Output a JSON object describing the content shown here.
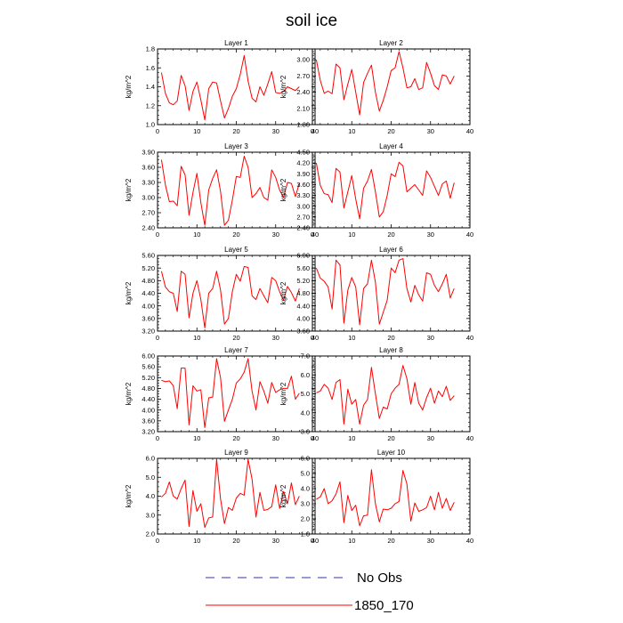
{
  "title": "soil ice",
  "colors": {
    "series": "#ff0000",
    "obs": "#3333aa",
    "axis": "#000000"
  },
  "legend": {
    "placement": "bottom-center",
    "items": [
      {
        "label": "No Obs",
        "style": "dashed",
        "color": "#3333aa"
      },
      {
        "label": "1850_170",
        "style": "solid",
        "color": "#ff0000"
      }
    ]
  },
  "chart_data": [
    {
      "type": "line",
      "title": "Layer 1",
      "ylabel": "kg/m^2",
      "xlim": [
        0,
        40
      ],
      "xticks": [
        "0",
        "10",
        "20",
        "30",
        "40"
      ],
      "ylim": [
        1.0,
        1.8
      ],
      "yticks": [
        "1.0",
        "1.2",
        "1.4",
        "1.6",
        "1.8"
      ],
      "x": [
        1,
        2,
        3,
        4,
        5,
        6,
        7,
        8,
        9,
        10,
        11,
        12,
        13,
        14,
        15,
        16,
        17,
        18,
        19,
        20,
        21,
        22,
        23,
        24,
        25,
        26,
        27,
        28,
        29,
        30,
        31,
        32,
        33,
        34,
        35,
        36
      ],
      "series": [
        {
          "values": [
            1.55,
            1.33,
            1.23,
            1.21,
            1.25,
            1.52,
            1.41,
            1.15,
            1.35,
            1.45,
            1.26,
            1.05,
            1.38,
            1.45,
            1.44,
            1.25,
            1.07,
            1.17,
            1.3,
            1.38,
            1.53,
            1.73,
            1.46,
            1.28,
            1.24,
            1.4,
            1.31,
            1.43,
            1.56,
            1.34,
            1.33,
            1.35,
            1.4,
            1.38,
            1.36,
            1.4
          ]
        }
      ]
    },
    {
      "type": "line",
      "title": "Layer 2",
      "ylabel": "kg/m^2",
      "xlim": [
        0,
        40
      ],
      "xticks": [
        "0",
        "10",
        "20",
        "30",
        "40"
      ],
      "ylim": [
        1.8,
        3.2
      ],
      "yticks": [
        "1.80",
        "2.10",
        "2.40",
        "2.70",
        "3.00"
      ],
      "x": [
        1,
        2,
        3,
        4,
        5,
        6,
        7,
        8,
        9,
        10,
        11,
        12,
        13,
        14,
        15,
        16,
        17,
        18,
        19,
        20,
        21,
        22,
        23,
        24,
        25,
        26,
        27,
        28,
        29,
        30,
        31,
        32,
        33,
        34,
        35,
        36
      ],
      "series": [
        {
          "values": [
            3.0,
            2.62,
            2.38,
            2.42,
            2.37,
            2.92,
            2.85,
            2.26,
            2.55,
            2.82,
            2.4,
            1.98,
            2.58,
            2.75,
            2.9,
            2.4,
            2.05,
            2.25,
            2.5,
            2.8,
            2.85,
            3.15,
            2.85,
            2.48,
            2.5,
            2.65,
            2.45,
            2.48,
            2.95,
            2.75,
            2.52,
            2.45,
            2.72,
            2.7,
            2.55,
            2.7
          ]
        }
      ]
    },
    {
      "type": "line",
      "title": "Layer 3",
      "ylabel": "kg/m^2",
      "xlim": [
        0,
        40
      ],
      "xticks": [
        "0",
        "10",
        "20",
        "30",
        "40"
      ],
      "ylim": [
        2.4,
        3.9
      ],
      "yticks": [
        "2.40",
        "2.70",
        "3.00",
        "3.30",
        "3.60",
        "3.90"
      ],
      "x": [
        1,
        2,
        3,
        4,
        5,
        6,
        7,
        8,
        9,
        10,
        11,
        12,
        13,
        14,
        15,
        16,
        17,
        18,
        19,
        20,
        21,
        22,
        23,
        24,
        25,
        26,
        27,
        28,
        29,
        30,
        31,
        32,
        33,
        34,
        35,
        36
      ],
      "series": [
        {
          "values": [
            3.75,
            3.25,
            2.92,
            2.93,
            2.84,
            3.62,
            3.45,
            2.65,
            3.1,
            3.48,
            2.9,
            2.45,
            3.15,
            3.38,
            3.55,
            3.12,
            2.45,
            2.55,
            2.95,
            3.42,
            3.4,
            3.82,
            3.6,
            3.0,
            3.08,
            3.2,
            3.0,
            2.95,
            3.55,
            3.4,
            3.15,
            3.0,
            3.3,
            3.28,
            3.02,
            3.28
          ]
        }
      ]
    },
    {
      "type": "line",
      "title": "Layer 4",
      "ylabel": "kg/m^2",
      "xlim": [
        0,
        40
      ],
      "xticks": [
        "0",
        "10",
        "20",
        "30",
        "40"
      ],
      "ylim": [
        2.4,
        4.5
      ],
      "yticks": [
        "2.40",
        "2.70",
        "3.00",
        "3.30",
        "3.60",
        "3.90",
        "4.20",
        "4.50"
      ],
      "x": [
        1,
        2,
        3,
        4,
        5,
        6,
        7,
        8,
        9,
        10,
        11,
        12,
        13,
        14,
        15,
        16,
        17,
        18,
        19,
        20,
        21,
        22,
        23,
        24,
        25,
        26,
        27,
        28,
        29,
        30,
        31,
        32,
        33,
        34,
        35,
        36
      ],
      "series": [
        {
          "values": [
            4.2,
            3.58,
            3.35,
            3.32,
            3.1,
            4.05,
            3.95,
            2.95,
            3.4,
            3.85,
            3.2,
            2.65,
            3.5,
            3.7,
            4.02,
            3.4,
            2.7,
            2.85,
            3.3,
            3.9,
            3.82,
            4.22,
            4.12,
            3.4,
            3.5,
            3.6,
            3.45,
            3.3,
            3.98,
            3.8,
            3.55,
            3.3,
            3.62,
            3.7,
            3.22,
            3.65
          ]
        }
      ]
    },
    {
      "type": "line",
      "title": "Layer 5",
      "ylabel": "kg/m^2",
      "xlim": [
        0,
        40
      ],
      "xticks": [
        "0",
        "10",
        "20",
        "30",
        "40"
      ],
      "ylim": [
        3.2,
        5.6
      ],
      "yticks": [
        "3.20",
        "3.60",
        "4.00",
        "4.40",
        "4.80",
        "5.20",
        "5.60"
      ],
      "x": [
        1,
        2,
        3,
        4,
        5,
        6,
        7,
        8,
        9,
        10,
        11,
        12,
        13,
        14,
        15,
        16,
        17,
        18,
        19,
        20,
        21,
        22,
        23,
        24,
        25,
        26,
        27,
        28,
        29,
        30,
        31,
        32,
        33,
        34,
        35,
        36
      ],
      "series": [
        {
          "values": [
            5.1,
            4.6,
            4.45,
            4.4,
            3.82,
            5.1,
            5.0,
            3.62,
            4.4,
            4.8,
            4.2,
            3.3,
            4.4,
            4.55,
            5.1,
            4.5,
            3.42,
            3.6,
            4.45,
            5.0,
            4.78,
            5.25,
            5.22,
            4.32,
            4.2,
            4.55,
            4.32,
            4.1,
            4.9,
            4.8,
            4.45,
            4.18,
            4.62,
            4.42,
            4.15,
            4.55
          ]
        }
      ]
    },
    {
      "type": "line",
      "title": "Layer 6",
      "ylabel": "kg/m^2",
      "xlim": [
        0,
        40
      ],
      "xticks": [
        "0",
        "10",
        "20",
        "30",
        "40"
      ],
      "ylim": [
        3.6,
        6.0
      ],
      "yticks": [
        "3.60",
        "4.00",
        "4.40",
        "4.80",
        "5.20",
        "5.60",
        "6.00"
      ],
      "x": [
        1,
        2,
        3,
        4,
        5,
        6,
        7,
        8,
        9,
        10,
        11,
        12,
        13,
        14,
        15,
        16,
        17,
        18,
        19,
        20,
        21,
        22,
        23,
        24,
        25,
        26,
        27,
        28,
        29,
        30,
        31,
        32,
        33,
        34,
        35,
        36
      ],
      "series": [
        {
          "values": [
            5.6,
            5.28,
            5.18,
            5.0,
            4.3,
            5.85,
            5.7,
            3.85,
            4.9,
            5.3,
            5.0,
            3.8,
            4.95,
            5.1,
            5.85,
            5.15,
            3.82,
            4.2,
            4.58,
            5.6,
            5.45,
            5.85,
            5.9,
            4.95,
            4.52,
            5.05,
            4.75,
            4.55,
            5.45,
            5.4,
            5.05,
            4.85,
            5.1,
            5.4,
            4.65,
            4.95
          ]
        }
      ]
    },
    {
      "type": "line",
      "title": "Layer 7",
      "ylabel": "kg/m^2",
      "xlim": [
        0,
        40
      ],
      "xticks": [
        "0",
        "10",
        "20",
        "30",
        "40"
      ],
      "ylim": [
        3.2,
        6.0
      ],
      "yticks": [
        "3.20",
        "3.60",
        "4.00",
        "4.40",
        "4.80",
        "5.20",
        "5.60",
        "6.00"
      ],
      "x": [
        1,
        2,
        3,
        4,
        5,
        6,
        7,
        8,
        9,
        10,
        11,
        12,
        13,
        14,
        15,
        16,
        17,
        18,
        19,
        20,
        21,
        22,
        23,
        24,
        25,
        26,
        27,
        28,
        29,
        30,
        31,
        32,
        33,
        34,
        35,
        36
      ],
      "series": [
        {
          "values": [
            5.1,
            5.05,
            5.08,
            4.9,
            4.05,
            5.55,
            5.55,
            3.45,
            4.9,
            4.7,
            4.75,
            3.35,
            4.45,
            4.48,
            5.9,
            5.2,
            3.58,
            4.0,
            4.4,
            5.0,
            5.15,
            5.4,
            5.9,
            4.7,
            4.0,
            5.05,
            4.7,
            4.25,
            5.02,
            4.65,
            4.75,
            4.8,
            4.8,
            5.25,
            4.4,
            4.62
          ]
        }
      ]
    },
    {
      "type": "line",
      "title": "Layer 8",
      "ylabel": "kg/m^2",
      "xlim": [
        0,
        40
      ],
      "xticks": [
        "0",
        "10",
        "20",
        "30",
        "40"
      ],
      "ylim": [
        3.0,
        7.0
      ],
      "yticks": [
        "3.0",
        "4.0",
        "5.0",
        "6.0",
        "7.0"
      ],
      "x": [
        1,
        2,
        3,
        4,
        5,
        6,
        7,
        8,
        9,
        10,
        11,
        12,
        13,
        14,
        15,
        16,
        17,
        18,
        19,
        20,
        21,
        22,
        23,
        24,
        25,
        26,
        27,
        28,
        29,
        30,
        31,
        32,
        33,
        34,
        35,
        36
      ],
      "series": [
        {
          "values": [
            5.05,
            5.15,
            5.5,
            5.3,
            4.7,
            5.6,
            5.75,
            3.4,
            5.25,
            4.45,
            4.7,
            3.4,
            4.4,
            4.7,
            6.4,
            5.0,
            3.7,
            4.3,
            4.2,
            5.0,
            5.3,
            5.5,
            6.5,
            5.8,
            4.45,
            5.6,
            4.5,
            4.15,
            4.8,
            5.3,
            4.5,
            5.15,
            4.85,
            5.4,
            4.65,
            4.9
          ]
        }
      ]
    },
    {
      "type": "line",
      "title": "Layer 9",
      "ylabel": "kg/m^2",
      "xlim": [
        0,
        40
      ],
      "xticks": [
        "0",
        "10",
        "20",
        "30",
        "40"
      ],
      "ylim": [
        2.0,
        6.0
      ],
      "yticks": [
        "2.0",
        "3.0",
        "4.0",
        "5.0",
        "6.0"
      ],
      "x": [
        1,
        2,
        3,
        4,
        5,
        6,
        7,
        8,
        9,
        10,
        11,
        12,
        13,
        14,
        15,
        16,
        17,
        18,
        19,
        20,
        21,
        22,
        23,
        24,
        25,
        26,
        27,
        28,
        29,
        30,
        31,
        32,
        33,
        34,
        35,
        36
      ],
      "series": [
        {
          "values": [
            3.95,
            4.15,
            4.75,
            4.0,
            3.85,
            4.4,
            4.85,
            2.4,
            4.3,
            3.2,
            3.6,
            2.35,
            2.85,
            2.9,
            5.95,
            3.85,
            2.55,
            3.4,
            3.25,
            3.9,
            4.15,
            4.05,
            5.95,
            4.9,
            2.9,
            4.2,
            3.25,
            3.3,
            3.45,
            4.6,
            3.35,
            4.25,
            3.6,
            4.7,
            3.55,
            4.0
          ]
        }
      ]
    },
    {
      "type": "line",
      "title": "Layer 10",
      "ylabel": "kg/m^2",
      "xlim": [
        0,
        40
      ],
      "xticks": [
        "0",
        "10",
        "20",
        "30",
        "40"
      ],
      "ylim": [
        1.0,
        6.0
      ],
      "yticks": [
        "1.0",
        "2.0",
        "3.0",
        "4.0",
        "5.0",
        "6.0"
      ],
      "x": [
        1,
        2,
        3,
        4,
        5,
        6,
        7,
        8,
        9,
        10,
        11,
        12,
        13,
        14,
        15,
        16,
        17,
        18,
        19,
        20,
        21,
        22,
        23,
        24,
        25,
        26,
        27,
        28,
        29,
        30,
        31,
        32,
        33,
        34,
        35,
        36
      ],
      "series": [
        {
          "values": [
            3.3,
            3.45,
            4.0,
            3.0,
            3.2,
            3.65,
            4.45,
            1.75,
            3.55,
            2.55,
            2.9,
            1.55,
            2.2,
            2.25,
            5.25,
            3.0,
            1.8,
            2.65,
            2.6,
            2.7,
            3.0,
            3.15,
            5.2,
            4.3,
            1.85,
            3.05,
            2.5,
            2.6,
            2.75,
            3.5,
            2.6,
            3.75,
            2.7,
            3.35,
            2.55,
            3.1
          ]
        }
      ]
    }
  ]
}
